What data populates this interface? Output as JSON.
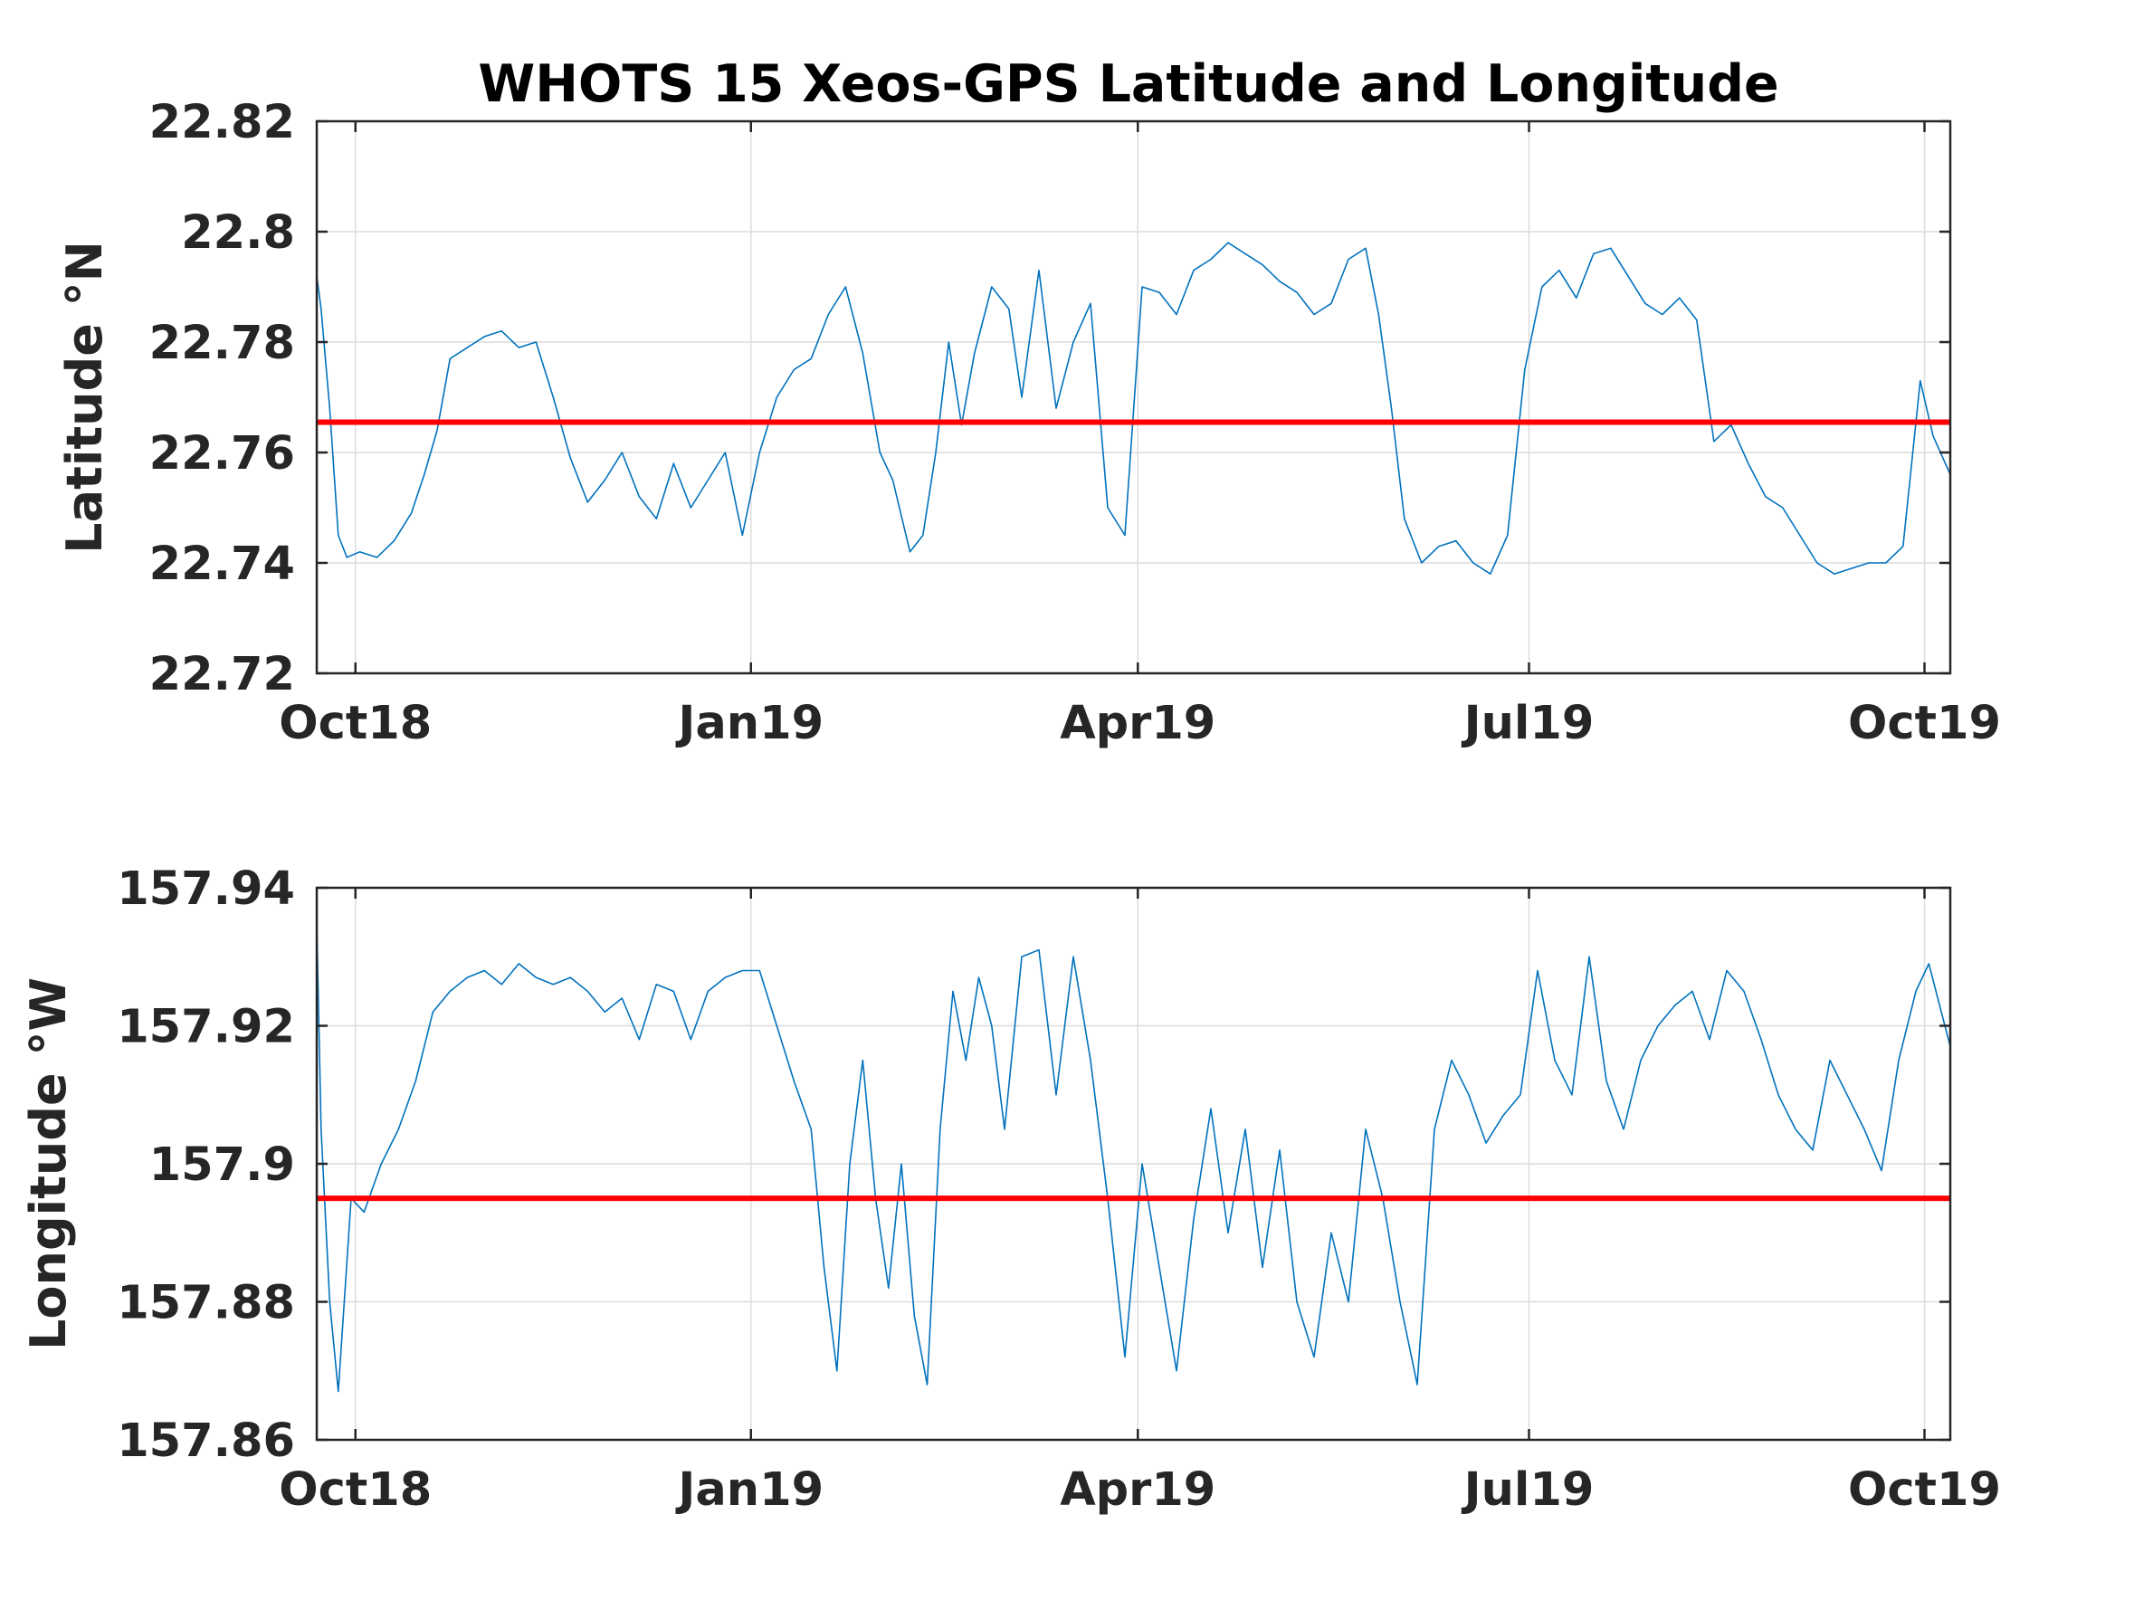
{
  "title": "WHOTS 15 Xeos-GPS Latitude and Longitude",
  "colors": {
    "series": "#0072BD",
    "mean": "#FF0000",
    "text": "#262626",
    "grid": "#DCDCDC"
  },
  "chart_data": [
    {
      "type": "line",
      "ylabel": "Latitude °N",
      "xlim": [
        "2018-09-22",
        "2019-10-07"
      ],
      "ylim": [
        22.72,
        22.82
      ],
      "grid": true,
      "x_ticks": [
        {
          "date": "2018-10-01",
          "label": "Oct18"
        },
        {
          "date": "2019-01-01",
          "label": "Jan19"
        },
        {
          "date": "2019-04-01",
          "label": "Apr19"
        },
        {
          "date": "2019-07-01",
          "label": "Jul19"
        },
        {
          "date": "2019-10-01",
          "label": "Oct19"
        }
      ],
      "y_ticks": [
        22.72,
        22.74,
        22.76,
        22.78,
        22.8,
        22.82
      ],
      "y_tick_labels": [
        "22.72",
        "22.74",
        "22.76",
        "22.78",
        "22.8",
        "22.82"
      ],
      "mean_value": 22.7655,
      "series": [
        {
          "x": [
            "2018-09-22",
            "2018-09-23",
            "2018-09-25",
            "2018-09-27",
            "2018-09-29",
            "2018-10-02",
            "2018-10-06",
            "2018-10-10",
            "2018-10-14",
            "2018-10-17",
            "2018-10-20",
            "2018-10-23",
            "2018-10-27",
            "2018-10-31",
            "2018-11-04",
            "2018-11-08",
            "2018-11-12",
            "2018-11-16",
            "2018-11-20",
            "2018-11-24",
            "2018-11-28",
            "2018-12-02",
            "2018-12-06",
            "2018-12-10",
            "2018-12-14",
            "2018-12-18",
            "2018-12-22",
            "2018-12-26",
            "2018-12-30",
            "2019-01-03",
            "2019-01-07",
            "2019-01-11",
            "2019-01-15",
            "2019-01-19",
            "2019-01-23",
            "2019-01-27",
            "2019-01-31",
            "2019-02-03",
            "2019-02-07",
            "2019-02-10",
            "2019-02-13",
            "2019-02-16",
            "2019-02-19",
            "2019-02-22",
            "2019-02-26",
            "2019-03-02",
            "2019-03-05",
            "2019-03-09",
            "2019-03-13",
            "2019-03-17",
            "2019-03-21",
            "2019-03-25",
            "2019-03-29",
            "2019-04-02",
            "2019-04-06",
            "2019-04-10",
            "2019-04-14",
            "2019-04-18",
            "2019-04-22",
            "2019-04-26",
            "2019-04-30",
            "2019-05-04",
            "2019-05-08",
            "2019-05-12",
            "2019-05-16",
            "2019-05-20",
            "2019-05-24",
            "2019-05-27",
            "2019-05-30",
            "2019-06-02",
            "2019-06-06",
            "2019-06-10",
            "2019-06-14",
            "2019-06-18",
            "2019-06-22",
            "2019-06-26",
            "2019-06-30",
            "2019-07-04",
            "2019-07-08",
            "2019-07-12",
            "2019-07-16",
            "2019-07-20",
            "2019-07-24",
            "2019-07-28",
            "2019-08-01",
            "2019-08-05",
            "2019-08-09",
            "2019-08-13",
            "2019-08-17",
            "2019-08-21",
            "2019-08-25",
            "2019-08-29",
            "2019-09-02",
            "2019-09-06",
            "2019-09-10",
            "2019-09-14",
            "2019-09-18",
            "2019-09-22",
            "2019-09-26",
            "2019-09-30",
            "2019-10-03",
            "2019-10-07"
          ],
          "y": [
            22.792,
            22.786,
            22.768,
            22.745,
            22.741,
            22.742,
            22.741,
            22.744,
            22.749,
            22.756,
            22.764,
            22.777,
            22.779,
            22.781,
            22.782,
            22.779,
            22.78,
            22.77,
            22.759,
            22.751,
            22.755,
            22.76,
            22.752,
            22.748,
            22.758,
            22.75,
            22.755,
            22.76,
            22.745,
            22.76,
            22.77,
            22.775,
            22.777,
            22.785,
            22.79,
            22.778,
            22.76,
            22.755,
            22.742,
            22.745,
            22.76,
            22.78,
            22.765,
            22.778,
            22.79,
            22.786,
            22.77,
            22.793,
            22.768,
            22.78,
            22.787,
            22.75,
            22.745,
            22.79,
            22.789,
            22.785,
            22.793,
            22.795,
            22.798,
            22.796,
            22.794,
            22.791,
            22.789,
            22.785,
            22.787,
            22.795,
            22.797,
            22.785,
            22.768,
            22.748,
            22.74,
            22.743,
            22.744,
            22.74,
            22.738,
            22.745,
            22.775,
            22.79,
            22.793,
            22.788,
            22.796,
            22.797,
            22.792,
            22.787,
            22.785,
            22.788,
            22.784,
            22.762,
            22.765,
            22.758,
            22.752,
            22.75,
            22.745,
            22.74,
            22.738,
            22.739,
            22.74,
            22.74,
            22.743,
            22.773,
            22.763,
            22.756
          ]
        }
      ]
    },
    {
      "type": "line",
      "ylabel": "Longitude °W",
      "xlim": [
        "2018-09-22",
        "2019-10-07"
      ],
      "ylim": [
        157.86,
        157.94
      ],
      "grid": true,
      "x_ticks": [
        {
          "date": "2018-10-01",
          "label": "Oct18"
        },
        {
          "date": "2019-01-01",
          "label": "Jan19"
        },
        {
          "date": "2019-04-01",
          "label": "Apr19"
        },
        {
          "date": "2019-07-01",
          "label": "Jul19"
        },
        {
          "date": "2019-10-01",
          "label": "Oct19"
        }
      ],
      "y_ticks": [
        157.86,
        157.88,
        157.9,
        157.92,
        157.94
      ],
      "y_tick_labels": [
        "157.86",
        "157.88",
        "157.9",
        "157.92",
        "157.94"
      ],
      "mean_value": 157.895,
      "series": [
        {
          "x": [
            "2018-09-22",
            "2018-09-23",
            "2018-09-25",
            "2018-09-27",
            "2018-09-30",
            "2018-10-03",
            "2018-10-07",
            "2018-10-11",
            "2018-10-15",
            "2018-10-19",
            "2018-10-23",
            "2018-10-27",
            "2018-10-31",
            "2018-11-04",
            "2018-11-08",
            "2018-11-12",
            "2018-11-16",
            "2018-11-20",
            "2018-11-24",
            "2018-11-28",
            "2018-12-02",
            "2018-12-06",
            "2018-12-10",
            "2018-12-14",
            "2018-12-18",
            "2018-12-22",
            "2018-12-26",
            "2018-12-30",
            "2019-01-03",
            "2019-01-07",
            "2019-01-11",
            "2019-01-15",
            "2019-01-18",
            "2019-01-21",
            "2019-01-24",
            "2019-01-27",
            "2019-01-30",
            "2019-02-02",
            "2019-02-05",
            "2019-02-08",
            "2019-02-11",
            "2019-02-14",
            "2019-02-17",
            "2019-02-20",
            "2019-02-23",
            "2019-02-26",
            "2019-03-01",
            "2019-03-05",
            "2019-03-09",
            "2019-03-13",
            "2019-03-17",
            "2019-03-21",
            "2019-03-25",
            "2019-03-29",
            "2019-04-02",
            "2019-04-06",
            "2019-04-10",
            "2019-04-14",
            "2019-04-18",
            "2019-04-22",
            "2019-04-26",
            "2019-04-30",
            "2019-05-04",
            "2019-05-08",
            "2019-05-12",
            "2019-05-16",
            "2019-05-20",
            "2019-05-24",
            "2019-05-28",
            "2019-06-01",
            "2019-06-05",
            "2019-06-09",
            "2019-06-13",
            "2019-06-17",
            "2019-06-21",
            "2019-06-25",
            "2019-06-29",
            "2019-07-03",
            "2019-07-07",
            "2019-07-11",
            "2019-07-15",
            "2019-07-19",
            "2019-07-23",
            "2019-07-27",
            "2019-07-31",
            "2019-08-04",
            "2019-08-08",
            "2019-08-12",
            "2019-08-16",
            "2019-08-20",
            "2019-08-24",
            "2019-08-28",
            "2019-09-01",
            "2019-09-05",
            "2019-09-09",
            "2019-09-13",
            "2019-09-17",
            "2019-09-21",
            "2019-09-25",
            "2019-09-29",
            "2019-10-02",
            "2019-10-07"
          ],
          "y": [
            157.935,
            157.905,
            157.88,
            157.867,
            157.895,
            157.893,
            157.9,
            157.905,
            157.912,
            157.922,
            157.925,
            157.927,
            157.928,
            157.926,
            157.929,
            157.927,
            157.926,
            157.927,
            157.925,
            157.922,
            157.924,
            157.918,
            157.926,
            157.925,
            157.918,
            157.925,
            157.927,
            157.928,
            157.928,
            157.92,
            157.912,
            157.905,
            157.885,
            157.87,
            157.9,
            157.915,
            157.895,
            157.882,
            157.9,
            157.878,
            157.868,
            157.905,
            157.925,
            157.915,
            157.927,
            157.92,
            157.905,
            157.93,
            157.931,
            157.91,
            157.93,
            157.915,
            157.895,
            157.872,
            157.9,
            157.885,
            157.87,
            157.892,
            157.908,
            157.89,
            157.905,
            157.885,
            157.902,
            157.88,
            157.872,
            157.89,
            157.88,
            157.905,
            157.895,
            157.88,
            157.868,
            157.905,
            157.915,
            157.91,
            157.903,
            157.907,
            157.91,
            157.928,
            157.915,
            157.91,
            157.93,
            157.912,
            157.905,
            157.915,
            157.92,
            157.923,
            157.925,
            157.918,
            157.928,
            157.925,
            157.918,
            157.91,
            157.905,
            157.902,
            157.915,
            157.91,
            157.905,
            157.899,
            157.915,
            157.925,
            157.929,
            157.917
          ]
        }
      ]
    }
  ]
}
